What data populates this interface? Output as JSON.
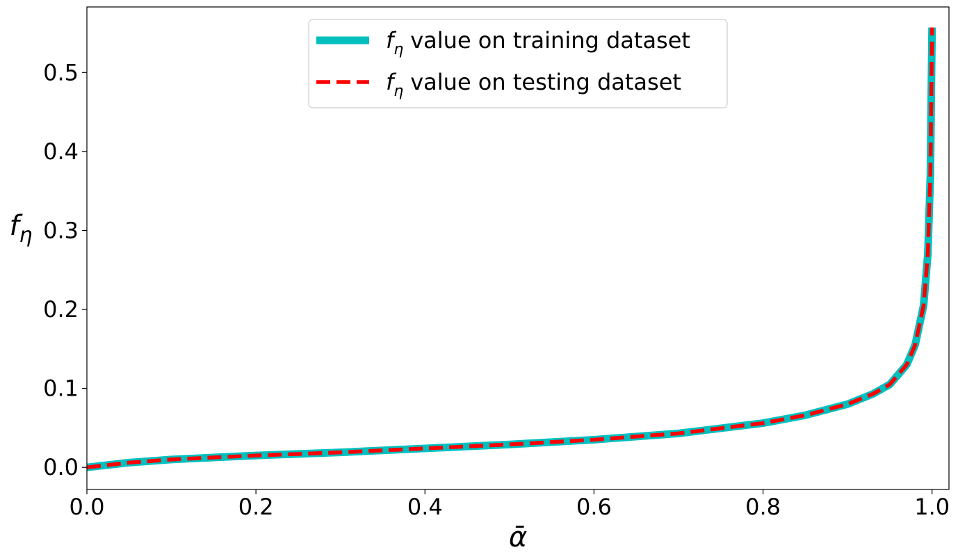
{
  "chart_data": {
    "type": "line",
    "title": "",
    "xlabel": "ᾱ",
    "ylabel": "f",
    "ylabel_sub": "η",
    "xlim": [
      0.0,
      1.02
    ],
    "ylim": [
      -0.028,
      0.583
    ],
    "xticks": [
      0.0,
      0.2,
      0.4,
      0.6,
      0.8,
      1.0
    ],
    "xtick_labels": [
      "0.0",
      "0.2",
      "0.4",
      "0.6",
      "0.8",
      "1.0"
    ],
    "yticks": [
      0.0,
      0.1,
      0.2,
      0.3,
      0.4,
      0.5
    ],
    "ytick_labels": [
      "0.0",
      "0.1",
      "0.2",
      "0.3",
      "0.4",
      "0.5"
    ],
    "grid": false,
    "legend_position": "top-center",
    "series": [
      {
        "name": "value on training dataset",
        "legend_prefix": "f",
        "legend_sub": "η",
        "color": "#00bfbf",
        "style": "solid",
        "x": [
          0.0,
          0.05,
          0.1,
          0.2,
          0.3,
          0.4,
          0.5,
          0.6,
          0.7,
          0.8,
          0.85,
          0.9,
          0.93,
          0.95,
          0.97,
          0.98,
          0.99,
          0.995,
          0.998,
          1.0
        ],
        "y": [
          0.0,
          0.006,
          0.01,
          0.015,
          0.019,
          0.024,
          0.029,
          0.035,
          0.043,
          0.056,
          0.066,
          0.08,
          0.093,
          0.105,
          0.13,
          0.155,
          0.205,
          0.27,
          0.37,
          0.557
        ]
      },
      {
        "name": "value on testing dataset",
        "legend_prefix": "f",
        "legend_sub": "η",
        "color": "#ff0000",
        "style": "dashed",
        "x": [
          0.0,
          0.05,
          0.1,
          0.2,
          0.3,
          0.4,
          0.5,
          0.6,
          0.7,
          0.8,
          0.85,
          0.9,
          0.93,
          0.95,
          0.97,
          0.98,
          0.99,
          0.995,
          0.998,
          1.0
        ],
        "y": [
          0.0,
          0.006,
          0.01,
          0.015,
          0.019,
          0.024,
          0.029,
          0.035,
          0.043,
          0.056,
          0.066,
          0.08,
          0.093,
          0.105,
          0.13,
          0.155,
          0.205,
          0.27,
          0.37,
          0.557
        ]
      }
    ]
  }
}
